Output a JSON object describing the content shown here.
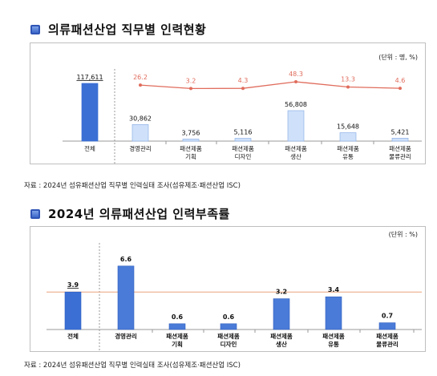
{
  "chart1": {
    "title": "의류패션산업 직무별 인력현황",
    "unit": "(단위 : 명, %)",
    "source": "자료 : 2024년 섬유패션산업 직무별 인력실태 조사(섬유제조·패션산업 ISC)"
  },
  "chart2": {
    "title": "2024년 의류패션산업 인력부족률",
    "unit": "(단위 : %)",
    "source": "자료 : 2024년 섬유패션산업 직무별 인력실태 조사(섬유제조·패션산업 ISC)"
  },
  "chart_data": [
    {
      "type": "bar",
      "title": "의류패션산업 직무별 인력현황",
      "categories": [
        "전체",
        "경영관리",
        "패션제품\n기획",
        "패션제품\n디자인",
        "패션제품\n생산",
        "패션제품\n유통",
        "패션제품\n물류관리"
      ],
      "series": [
        {
          "values": [
            117611,
            30862,
            3756,
            5116,
            56808,
            15648,
            5421
          ],
          "labels": [
            "117,611",
            "30,862",
            "3,756",
            "5,116",
            "56,808",
            "15,648",
            "5,421"
          ]
        },
        {
          "type": "line",
          "values": [
            null,
            26.2,
            3.2,
            4.3,
            48.3,
            13.3,
            4.6
          ],
          "labels": [
            "",
            "26.2",
            "3.2",
            "4.3",
            "48.3",
            "13.3",
            "4.6"
          ]
        }
      ],
      "colors": {
        "total_bar": "#3b6fd4",
        "bar": "#cfe0fa",
        "bar_border": "#8fb1e6",
        "line": "#e06c5c"
      },
      "grid": false
    },
    {
      "type": "bar",
      "title": "2024년 의류패션산업 인력부족률",
      "categories": [
        "전체",
        "경영관리",
        "패션제품\n기획",
        "패션제품\n디자인",
        "패션제품\n생산",
        "패션제품\n유통",
        "패션제품\n물류관리"
      ],
      "values": [
        3.9,
        6.6,
        0.6,
        0.6,
        3.2,
        3.4,
        0.7
      ],
      "labels": [
        "3.9",
        "6.6",
        "0.6",
        "0.6",
        "3.2",
        "3.4",
        "0.7"
      ],
      "ylim": [
        0,
        7.5
      ],
      "reference_line": 3.9,
      "colors": {
        "total_bar": "#3b6fd4",
        "bar": "#4a7bd8",
        "reference": "#e8a27a"
      },
      "grid": false
    }
  ]
}
